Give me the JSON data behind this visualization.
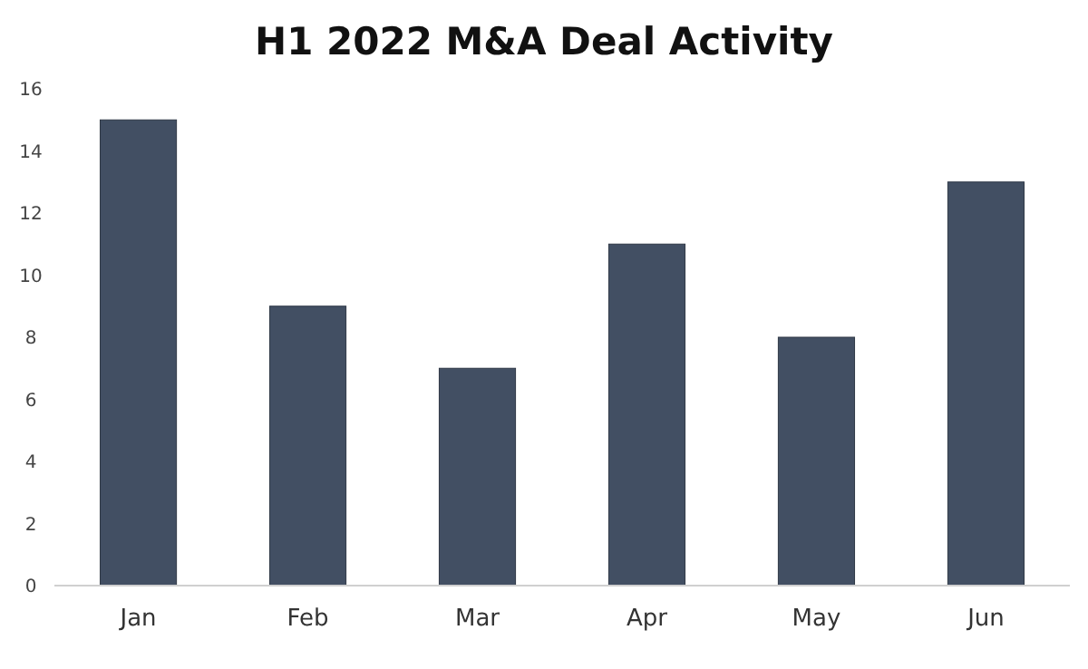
{
  "chart_data": {
    "type": "bar",
    "title": "H1 2022 M&A Deal Activity",
    "categories": [
      "Jan",
      "Feb",
      "Mar",
      "Apr",
      "May",
      "Jun"
    ],
    "values": [
      15,
      9,
      7,
      11,
      8,
      13
    ],
    "color": "#424f63",
    "ylim": [
      0,
      16
    ],
    "yticks": [
      0,
      2,
      4,
      6,
      8,
      10,
      12,
      14,
      16
    ],
    "grid": false
  }
}
